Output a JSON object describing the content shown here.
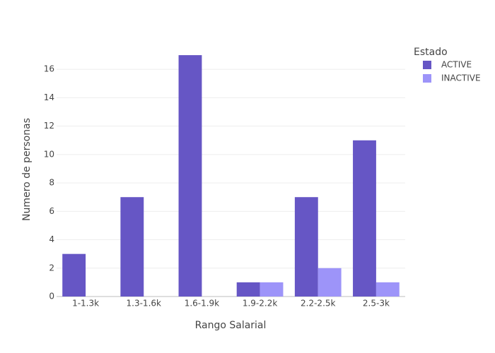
{
  "chart_data": {
    "type": "bar",
    "xlabel": "Rango Salarial",
    "ylabel": "Numero de personas",
    "categories": [
      "1-1.3k",
      "1.3-1.6k",
      "1.6-1.9k",
      "1.9-2.2k",
      "2.2-2.5k",
      "2.5-3k"
    ],
    "series": [
      {
        "name": "ACTIVE",
        "values": [
          3,
          7,
          17,
          1,
          7,
          11
        ],
        "color": "#6656c5"
      },
      {
        "name": "INACTIVE",
        "values": [
          0,
          0,
          0,
          1,
          2,
          1
        ],
        "color": "#9d94f9"
      }
    ],
    "ylim": [
      0,
      17.9
    ],
    "yticks": [
      0,
      2,
      4,
      6,
      8,
      10,
      12,
      14,
      16
    ],
    "grid": true,
    "legend": {
      "title": "Estado",
      "placement": "top-right"
    }
  }
}
